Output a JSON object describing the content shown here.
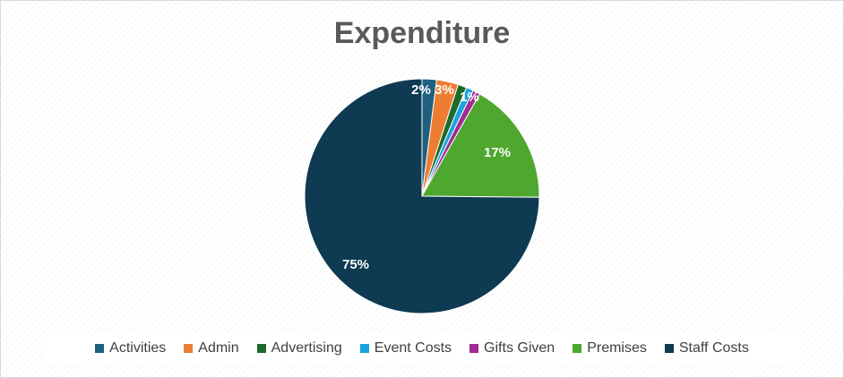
{
  "chart_data": {
    "type": "pie",
    "title": "Expenditure",
    "categories": [
      "Activities",
      "Admin",
      "Advertising",
      "Event Costs",
      "Gifts Given",
      "Premises",
      "Staff Costs"
    ],
    "values": [
      2,
      3,
      1.2,
      1,
      1,
      17,
      75
    ],
    "data_labels": [
      "2%",
      "3%",
      "",
      "1%",
      "",
      "17%",
      "75%"
    ],
    "colors": [
      "#1f5f7f",
      "#ed7d31",
      "#1d6b2c",
      "#1aa3dc",
      "#a02b93",
      "#4ea72e",
      "#0e3a52"
    ],
    "legend": "bottom",
    "start_angle_deg": 0,
    "direction": "clockwise"
  }
}
